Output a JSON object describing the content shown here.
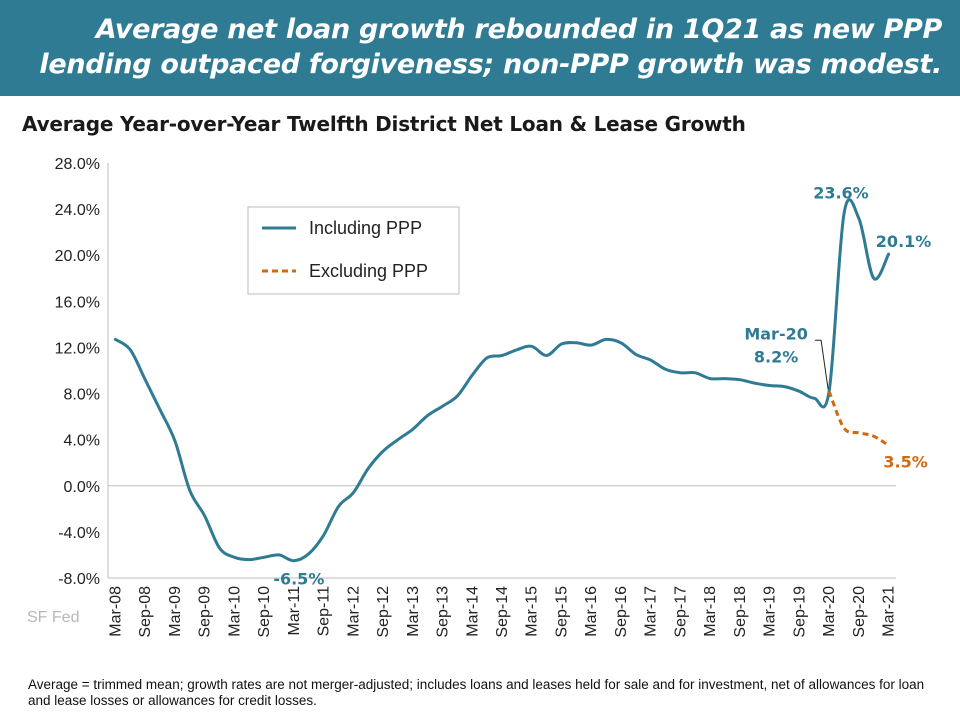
{
  "header": {
    "headline": "Average net loan growth rebounded in 1Q21 as new PPP lending outpaced forgiveness; non-PPP growth was modest."
  },
  "footnote": "Average = trimmed mean; growth rates are not merger-adjusted; includes loans and leases held for sale and for investment, net of allowances for loan and lease losses or allowances for credit losses.",
  "watermark": "SF Fed",
  "colors": {
    "banner": "#2e7b93",
    "including": "#2e7b93",
    "excluding": "#d2690f"
  },
  "chart_data": {
    "type": "line",
    "title": "Average Year-over-Year Twelfth District Net Loan & Lease Growth",
    "ylim": [
      -8,
      28
    ],
    "yticks": [
      "-8.0%",
      "-4.0%",
      "0.0%",
      "4.0%",
      "8.0%",
      "12.0%",
      "16.0%",
      "20.0%",
      "24.0%",
      "28.0%"
    ],
    "ytick_values": [
      -8,
      -4,
      0,
      4,
      8,
      12,
      16,
      20,
      24,
      28
    ],
    "xticks": [
      "Mar-08",
      "Sep-08",
      "Mar-09",
      "Sep-09",
      "Mar-10",
      "Sep-10",
      "Mar-11",
      "Sep-11",
      "Mar-12",
      "Sep-12",
      "Mar-13",
      "Sep-13",
      "Mar-14",
      "Sep-14",
      "Mar-15",
      "Sep-15",
      "Mar-16",
      "Sep-16",
      "Mar-17",
      "Sep-17",
      "Mar-18",
      "Sep-18",
      "Mar-19",
      "Sep-19",
      "Mar-20",
      "Sep-20",
      "Mar-21"
    ],
    "x_range": [
      "Mar-08",
      "Mar-21"
    ],
    "grid": false,
    "legend_position": "top-left",
    "series": [
      {
        "name": "Including PPP",
        "style": "solid",
        "x": [
          "Mar-08",
          "Jun-08",
          "Sep-08",
          "Dec-08",
          "Mar-09",
          "Jun-09",
          "Sep-09",
          "Dec-09",
          "Mar-10",
          "Jun-10",
          "Sep-10",
          "Dec-10",
          "Mar-11",
          "Jun-11",
          "Sep-11",
          "Dec-11",
          "Mar-12",
          "Jun-12",
          "Sep-12",
          "Dec-12",
          "Mar-13",
          "Jun-13",
          "Sep-13",
          "Dec-13",
          "Mar-14",
          "Jun-14",
          "Sep-14",
          "Dec-14",
          "Mar-15",
          "Jun-15",
          "Sep-15",
          "Dec-15",
          "Mar-16",
          "Jun-16",
          "Sep-16",
          "Dec-16",
          "Mar-17",
          "Jun-17",
          "Sep-17",
          "Dec-17",
          "Mar-18",
          "Jun-18",
          "Sep-18",
          "Dec-18",
          "Mar-19",
          "Jun-19",
          "Sep-19",
          "Dec-19",
          "Mar-20",
          "Jun-20",
          "Sep-20",
          "Dec-20",
          "Mar-21"
        ],
        "values": [
          12.7,
          11.8,
          9.2,
          6.6,
          3.9,
          -0.4,
          -2.6,
          -5.4,
          -6.2,
          -6.4,
          -6.2,
          -6.0,
          -6.5,
          -5.9,
          -4.3,
          -1.8,
          -0.6,
          1.5,
          3.0,
          4.0,
          4.9,
          6.1,
          6.9,
          7.8,
          9.6,
          11.1,
          11.3,
          11.8,
          12.1,
          11.3,
          12.3,
          12.4,
          12.2,
          12.7,
          12.4,
          11.4,
          10.9,
          10.1,
          9.8,
          9.8,
          9.3,
          9.3,
          9.2,
          8.9,
          8.7,
          8.6,
          8.2,
          7.6,
          8.2,
          23.6,
          23.2,
          18.0,
          20.1
        ]
      },
      {
        "name": "Excluding PPP",
        "style": "dashed",
        "x": [
          "Mar-20",
          "Jun-20",
          "Sep-20",
          "Dec-20",
          "Mar-21"
        ],
        "values": [
          8.2,
          5.0,
          4.6,
          4.3,
          3.5
        ]
      }
    ],
    "annotations": [
      {
        "text": "-6.5%",
        "series": "Including PPP",
        "at": "Mar-11"
      },
      {
        "text": "Mar-20",
        "series": "Including PPP",
        "at": "Mar-20"
      },
      {
        "text": "8.2%",
        "series": "Including PPP",
        "at": "Mar-20"
      },
      {
        "text": "23.6%",
        "series": "Including PPP",
        "at": "Jun-20"
      },
      {
        "text": "20.1%",
        "series": "Including PPP",
        "at": "Mar-21"
      },
      {
        "text": "3.5%",
        "series": "Excluding PPP",
        "at": "Mar-21"
      }
    ]
  }
}
